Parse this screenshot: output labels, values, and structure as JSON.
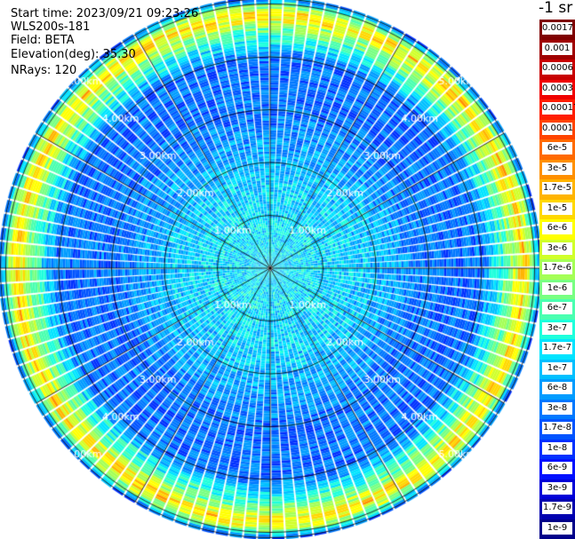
{
  "info": {
    "start_time": "Start time: 2023/09/21 09:23:26",
    "device": "WLS200s-181",
    "field": "Field: BETA",
    "elevation": "Elevation(deg): 35.30",
    "nrays": "NRays: 120"
  },
  "colorbar": {
    "unit": "-1 sr",
    "labels": [
      "0.0017",
      "0.001",
      "0.0006",
      "0.0003",
      "0.00017",
      "0.0001",
      "6e-5",
      "3e-5",
      "1.7e-5",
      "1e-5",
      "6e-6",
      "3e-6",
      "1.7e-6",
      "1e-6",
      "6e-7",
      "3e-7",
      "1.7e-7",
      "1e-7",
      "6e-8",
      "3e-8",
      "1.7e-8",
      "1e-8",
      "6e-9",
      "3e-9",
      "1.7e-9",
      "1e-9"
    ],
    "colors": [
      "#7f0000",
      "#a00000",
      "#c80000",
      "#f00000",
      "#ff1e00",
      "#ff4400",
      "#ff6a00",
      "#ff9000",
      "#ffb400",
      "#ffd800",
      "#ffff00",
      "#d0ff2a",
      "#a4ff56",
      "#78ff82",
      "#4affb0",
      "#1effdc",
      "#00e4ff",
      "#00c0ff",
      "#009cff",
      "#0078ff",
      "#0054ff",
      "#0030ff",
      "#0010ff",
      "#0000d8",
      "#0000b0",
      "#00008a"
    ]
  },
  "chart_data": {
    "type": "heatmap",
    "projection": "polar (PPI scan)",
    "field": "BETA",
    "unit": "sr-1",
    "rays": 120,
    "range_rings_km": [
      1,
      2,
      3,
      4,
      5
    ],
    "range_labels": [
      "1.00km",
      "2.00km",
      "3.00km",
      "4.00km",
      "5.00km"
    ],
    "max_range_km": 5.1,
    "angular_gridlines_deg": 30,
    "scale": "log",
    "value_range": [
      1e-09,
      0.0017
    ],
    "radial_profile": [
      {
        "range_km": 0.2,
        "value": 1.7e-07
      },
      {
        "range_km": 1.0,
        "value": 1.7e-07
      },
      {
        "range_km": 2.0,
        "value": 1e-07
      },
      {
        "range_km": 3.0,
        "value": 3e-08
      },
      {
        "range_km": 4.0,
        "value": 3e-08
      },
      {
        "range_km": 4.6,
        "value": 1.7e-06
      },
      {
        "range_km": 4.8,
        "value": 1e-05
      },
      {
        "range_km": 5.0,
        "value": 6e-07
      },
      {
        "range_km": 5.1,
        "value": 3e-08
      }
    ]
  }
}
